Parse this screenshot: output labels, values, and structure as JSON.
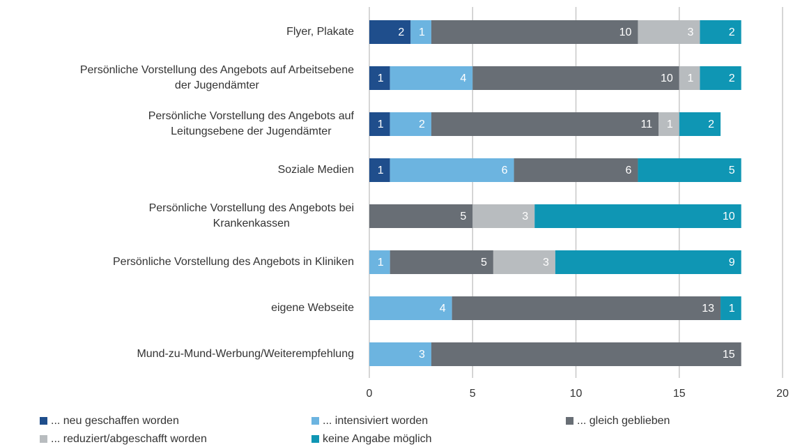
{
  "chart_data": {
    "type": "stacked-bar-horizontal",
    "categories": [
      "Flyer, Plakate",
      "Persönliche Vorstellung des Angebots auf Arbeitsebene\nder Jugendämter",
      "Persönliche Vorstellung des Angebots auf\nLeitungsebene der Jugendämter",
      "Soziale Medien",
      "Persönliche Vorstellung des Angebots bei\nKrankenkassen",
      "Persönliche Vorstellung des Angebots in Kliniken",
      "eigene Webseite",
      "Mund-zu-Mund-Werbung/Weiterempfehlung"
    ],
    "series": [
      {
        "name": "... neu geschaffen worden",
        "color": "#1f4e8c",
        "values": [
          2,
          1,
          1,
          1,
          null,
          null,
          null,
          null
        ]
      },
      {
        "name": "... intensiviert worden",
        "color": "#6cb4e0",
        "values": [
          1,
          4,
          2,
          6,
          null,
          1,
          4,
          3
        ]
      },
      {
        "name": "... gleich geblieben",
        "color": "#686e75",
        "values": [
          10,
          10,
          11,
          6,
          5,
          5,
          13,
          15
        ]
      },
      {
        "name": "... reduziert/abgeschafft worden",
        "color": "#b8bcbf",
        "values": [
          3,
          1,
          1,
          null,
          3,
          3,
          null,
          null
        ]
      },
      {
        "name": "keine Angabe möglich",
        "color": "#0f96b4",
        "values": [
          2,
          2,
          2,
          5,
          10,
          9,
          1,
          null
        ]
      }
    ],
    "xlim": [
      0,
      20
    ],
    "xticks": [
      0,
      5,
      10,
      15,
      20
    ],
    "grid": true
  }
}
